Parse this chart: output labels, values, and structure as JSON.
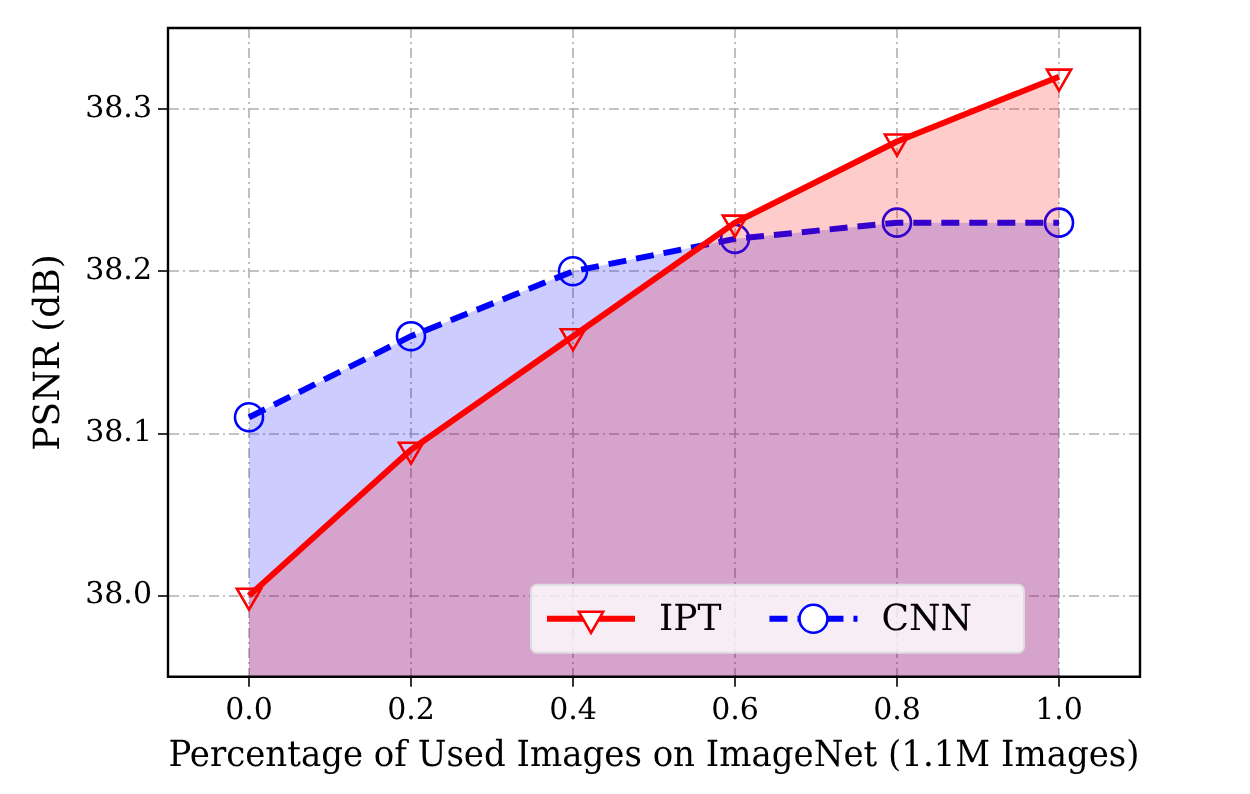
{
  "chart_data": {
    "type": "area",
    "xlabel": "Percentage of Used Images on ImageNet (1.1M Images)",
    "ylabel": "PSNR (dB)",
    "x": [
      0.0,
      0.2,
      0.4,
      0.6,
      0.8,
      1.0
    ],
    "series": [
      {
        "name": "IPT",
        "color": "#ff0000",
        "values": [
          38.0,
          38.09,
          38.16,
          38.23,
          38.28,
          38.32
        ],
        "marker": "triangle",
        "line_style": "solid"
      },
      {
        "name": "CNN",
        "color": "#0000ff",
        "values": [
          38.11,
          38.16,
          38.2,
          38.22,
          38.23,
          38.23
        ],
        "marker": "circle",
        "line_style": "dashed"
      }
    ],
    "xlim": [
      -0.1,
      1.1
    ],
    "xticks": [
      {
        "value": 0,
        "label": "0.0"
      },
      0.2,
      0.4,
      0.6,
      0.8,
      {
        "value": 1,
        "label": "1.0"
      }
    ],
    "ylim": [
      37.95,
      38.35
    ],
    "yticks": [
      {
        "value": 38,
        "label": "38.0"
      },
      38.1,
      38.2,
      38.3
    ],
    "grid": true,
    "legend": "bottom right"
  }
}
